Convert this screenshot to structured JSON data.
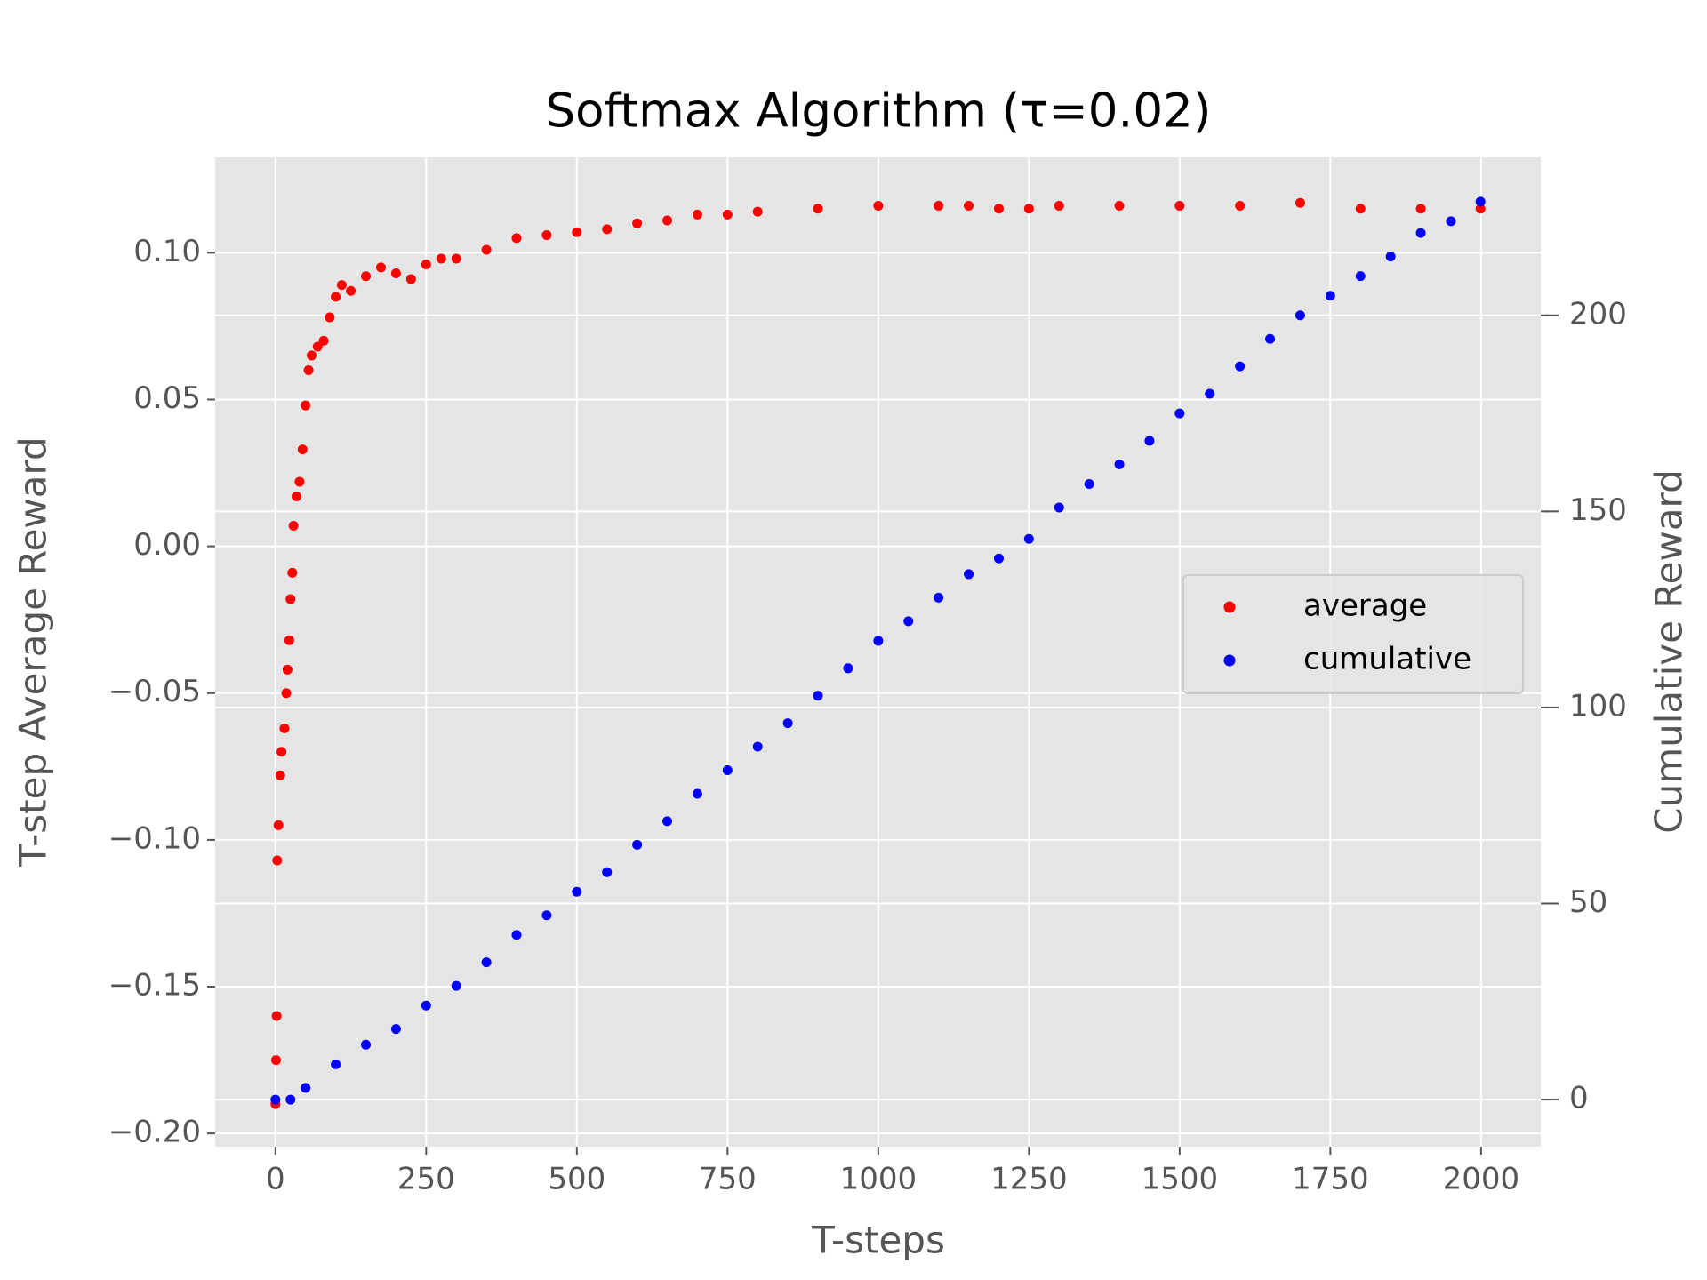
{
  "chart_data": {
    "type": "scatter",
    "title": "Softmax Algorithm (τ=0.02)",
    "xlabel": "T-steps",
    "ylabel": "T-step Average Reward",
    "y2label": "Cumulative Reward",
    "xlim": [
      -100,
      2099
    ],
    "ylim": [
      -0.2045,
      0.1325
    ],
    "y2lim": [
      -12,
      240.3
    ],
    "xticks": [
      0,
      250,
      500,
      750,
      1000,
      1250,
      1500,
      1750,
      2000
    ],
    "yticks": [
      {
        "value": -0.2,
        "label": "−0.20"
      },
      {
        "value": -0.15,
        "label": "−0.15"
      },
      {
        "value": -0.1,
        "label": "−0.10"
      },
      {
        "value": -0.05,
        "label": "−0.05"
      },
      {
        "value": 0,
        "label": "0.00"
      },
      {
        "value": 0.05,
        "label": "0.05"
      },
      {
        "value": 0.1,
        "label": "0.10"
      }
    ],
    "y2ticks": [
      0,
      50,
      100,
      150,
      200
    ],
    "grid": true,
    "legend": "center right",
    "series": [
      {
        "name": "average",
        "color": "#ff0000",
        "x": [
          0,
          1,
          2,
          3,
          5,
          8,
          10,
          15,
          18,
          20,
          23,
          25,
          28,
          30,
          35,
          40,
          45,
          50,
          55,
          60,
          70,
          80,
          90,
          100,
          110,
          125,
          150,
          175,
          200,
          225,
          250,
          275,
          300,
          350,
          400,
          450,
          500,
          550,
          600,
          650,
          700,
          750,
          800,
          900,
          1000,
          1100,
          1150,
          1200,
          1250,
          1300,
          1400,
          1500,
          1600,
          1700,
          1800,
          1900,
          1999
        ],
        "values": [
          -0.19,
          -0.175,
          -0.16,
          -0.107,
          -0.095,
          -0.078,
          -0.07,
          -0.062,
          -0.05,
          -0.042,
          -0.032,
          -0.018,
          -0.009,
          0.007,
          0.017,
          0.022,
          0.033,
          0.048,
          0.06,
          0.065,
          0.068,
          0.07,
          0.078,
          0.085,
          0.089,
          0.087,
          0.092,
          0.095,
          0.093,
          0.091,
          0.096,
          0.098,
          0.098,
          0.101,
          0.105,
          0.106,
          0.107,
          0.108,
          0.11,
          0.111,
          0.113,
          0.113,
          0.114,
          0.115,
          0.116,
          0.116,
          0.116,
          0.115,
          0.115,
          0.116,
          0.116,
          0.116,
          0.116,
          0.117,
          0.115,
          0.115,
          0.115
        ]
      },
      {
        "name": "cumulative",
        "color": "#0000ff",
        "axis": "y2",
        "x": [
          0,
          25,
          50,
          100,
          150,
          200,
          250,
          300,
          350,
          400,
          450,
          500,
          550,
          600,
          650,
          700,
          750,
          800,
          850,
          900,
          950,
          1000,
          1050,
          1100,
          1150,
          1200,
          1250,
          1300,
          1350,
          1400,
          1450,
          1500,
          1550,
          1600,
          1650,
          1700,
          1750,
          1800,
          1850,
          1900,
          1950,
          1999
        ],
        "values": [
          0,
          0,
          3,
          9,
          14,
          18,
          24,
          29,
          35,
          42,
          47,
          53,
          58,
          65,
          71,
          78,
          84,
          90,
          96,
          103,
          110,
          117,
          122,
          128,
          134,
          138,
          143,
          151,
          157,
          162,
          168,
          175,
          180,
          187,
          194,
          200,
          205,
          210,
          215,
          221,
          224,
          229
        ]
      }
    ]
  }
}
